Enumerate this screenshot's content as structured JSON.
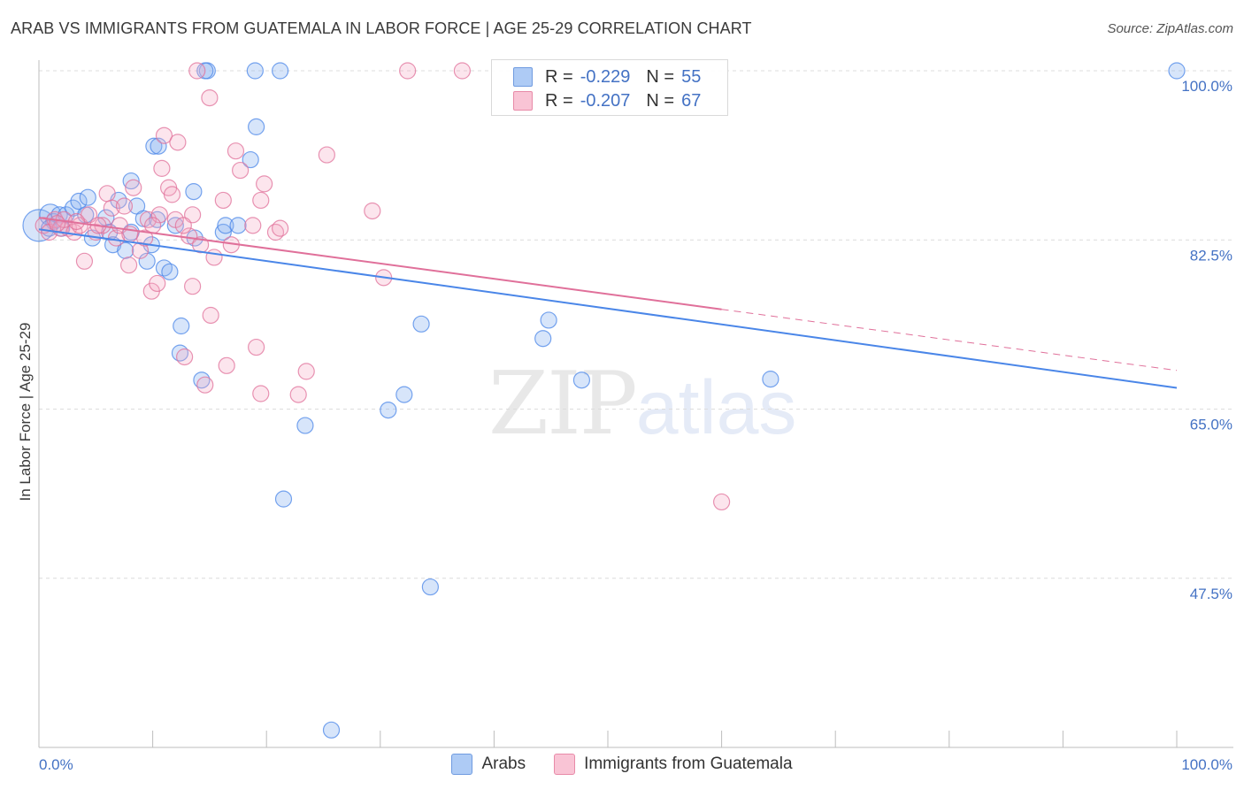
{
  "title": "ARAB VS IMMIGRANTS FROM GUATEMALA IN LABOR FORCE | AGE 25-29 CORRELATION CHART",
  "source": "Source: ZipAtlas.com",
  "watermark": {
    "zip": "ZIP",
    "atlas": "atlas"
  },
  "legend": {
    "r_label": "R =",
    "n_label": "N =",
    "rows": [
      {
        "name": "Arabs",
        "r": "-0.229",
        "n": "55",
        "color": "#aecbf5",
        "border": "#6f9be0"
      },
      {
        "name": "Immigrants from Guatemala",
        "r": "-0.207",
        "n": "67",
        "color": "#f9c4d5",
        "border": "#e88aa8"
      }
    ]
  },
  "chart_data": {
    "type": "scatter",
    "xlabel": "",
    "ylabel": "In Labor Force | Age 25-29",
    "xlim": [
      0,
      100
    ],
    "ylim": [
      30,
      100
    ],
    "x_tick_labels": [
      "0.0%",
      "100.0%"
    ],
    "y_ticks": [
      47.5,
      65.0,
      82.5,
      100.0
    ],
    "y_tick_labels": [
      "47.5%",
      "65.0%",
      "82.5%",
      "100.0%"
    ],
    "grid": true,
    "series": [
      {
        "name": "Arabs",
        "color": "#4a86e8",
        "fill": "rgba(140,180,240,0.35)",
        "trend": {
          "x0": 0,
          "y0": 83.6,
          "x1": 100,
          "y1": 67.2,
          "dash_from": null
        },
        "points": [
          [
            0.0,
            84.0,
            18
          ],
          [
            1.0,
            85.1,
            12
          ],
          [
            1.3,
            84.4,
            9
          ],
          [
            1.8,
            85.1,
            9
          ],
          [
            2.4,
            85.1,
            9
          ],
          [
            3.0,
            85.8,
            9
          ],
          [
            3.5,
            86.5,
            9
          ],
          [
            4.3,
            86.9,
            9
          ],
          [
            4.1,
            85.1,
            9
          ],
          [
            4.7,
            82.7,
            9
          ],
          [
            5.9,
            84.8,
            9
          ],
          [
            6.2,
            83.3,
            9
          ],
          [
            6.5,
            82.0,
            9
          ],
          [
            7.0,
            86.6,
            9
          ],
          [
            7.6,
            81.4,
            9
          ],
          [
            8.1,
            83.3,
            9
          ],
          [
            8.1,
            88.6,
            9
          ],
          [
            8.6,
            86.0,
            9
          ],
          [
            9.2,
            84.7,
            9
          ],
          [
            9.5,
            80.3,
            9
          ],
          [
            9.9,
            82.0,
            9
          ],
          [
            10.1,
            92.2,
            9
          ],
          [
            10.5,
            92.2,
            9
          ],
          [
            10.4,
            84.6,
            9
          ],
          [
            11.0,
            79.6,
            9
          ],
          [
            11.5,
            79.2,
            9
          ],
          [
            12.0,
            84.0,
            9
          ],
          [
            12.5,
            73.6,
            9
          ],
          [
            12.4,
            70.8,
            9
          ],
          [
            13.6,
            87.5,
            9
          ],
          [
            13.7,
            82.7,
            9
          ],
          [
            14.3,
            68.0,
            9
          ],
          [
            14.8,
            100.0,
            9
          ],
          [
            14.6,
            100.0,
            9
          ],
          [
            16.2,
            83.3,
            9
          ],
          [
            16.4,
            84.0,
            9
          ],
          [
            17.5,
            84.0,
            9
          ],
          [
            18.6,
            90.8,
            9
          ],
          [
            19.0,
            100.0,
            9
          ],
          [
            19.1,
            94.2,
            9
          ],
          [
            21.2,
            100.0,
            9
          ],
          [
            21.5,
            55.7,
            9
          ],
          [
            23.4,
            63.3,
            9
          ],
          [
            25.7,
            31.8,
            9
          ],
          [
            30.7,
            64.9,
            9
          ],
          [
            32.1,
            66.5,
            9
          ],
          [
            33.6,
            73.8,
            9
          ],
          [
            34.4,
            46.6,
            9
          ],
          [
            44.3,
            72.3,
            9
          ],
          [
            44.8,
            74.2,
            9
          ],
          [
            47.7,
            68.0,
            9
          ],
          [
            64.3,
            68.1,
            9
          ],
          [
            100.0,
            100.0,
            9
          ],
          [
            2.0,
            83.7,
            9
          ],
          [
            0.9,
            83.7,
            9
          ]
        ]
      },
      {
        "name": "Immigrants from Guatemala",
        "color": "#e0709a",
        "fill": "rgba(245,170,196,0.30)",
        "trend": {
          "x0": 0,
          "y0": 84.8,
          "x1": 100,
          "y1": 69.0,
          "dash_from": 60
        },
        "points": [
          [
            0.4,
            84.0,
            9
          ],
          [
            0.9,
            83.3,
            9
          ],
          [
            1.4,
            84.6,
            9
          ],
          [
            1.9,
            83.7,
            9
          ],
          [
            2.6,
            83.7,
            9
          ],
          [
            3.1,
            83.3,
            9
          ],
          [
            3.6,
            84.0,
            9
          ],
          [
            4.0,
            80.3,
            9
          ],
          [
            4.4,
            85.1,
            9
          ],
          [
            5.0,
            83.3,
            9
          ],
          [
            5.6,
            84.0,
            9
          ],
          [
            6.0,
            87.3,
            9
          ],
          [
            6.4,
            85.8,
            9
          ],
          [
            6.8,
            82.7,
            9
          ],
          [
            7.1,
            84.0,
            9
          ],
          [
            7.5,
            86.0,
            9
          ],
          [
            7.9,
            79.9,
            9
          ],
          [
            8.3,
            87.9,
            9
          ],
          [
            8.9,
            81.4,
            9
          ],
          [
            9.3,
            82.7,
            9
          ],
          [
            9.6,
            84.6,
            9
          ],
          [
            9.9,
            77.2,
            9
          ],
          [
            10.4,
            78.0,
            9
          ],
          [
            10.6,
            85.1,
            9
          ],
          [
            10.8,
            89.9,
            9
          ],
          [
            11.0,
            93.3,
            9
          ],
          [
            11.4,
            87.9,
            9
          ],
          [
            11.7,
            87.2,
            9
          ],
          [
            12.0,
            84.6,
            9
          ],
          [
            12.2,
            92.6,
            9
          ],
          [
            12.8,
            70.4,
            9
          ],
          [
            13.2,
            82.9,
            9
          ],
          [
            13.5,
            77.7,
            9
          ],
          [
            13.9,
            100.0,
            9
          ],
          [
            14.2,
            82.0,
            9
          ],
          [
            14.6,
            67.5,
            9
          ],
          [
            15.0,
            97.2,
            9
          ],
          [
            15.1,
            74.7,
            9
          ],
          [
            15.4,
            80.7,
            9
          ],
          [
            16.2,
            86.6,
            9
          ],
          [
            16.5,
            69.5,
            9
          ],
          [
            16.9,
            82.0,
            9
          ],
          [
            17.3,
            91.7,
            9
          ],
          [
            17.7,
            89.7,
            9
          ],
          [
            18.8,
            84.0,
            9
          ],
          [
            19.1,
            71.4,
            9
          ],
          [
            19.5,
            86.6,
            9
          ],
          [
            19.8,
            88.3,
            9
          ],
          [
            20.8,
            83.3,
            9
          ],
          [
            21.2,
            83.7,
            9
          ],
          [
            22.8,
            66.5,
            9
          ],
          [
            23.5,
            68.9,
            9
          ],
          [
            25.3,
            91.3,
            9
          ],
          [
            29.3,
            85.5,
            9
          ],
          [
            30.3,
            78.6,
            9
          ],
          [
            32.4,
            100.0,
            9
          ],
          [
            37.2,
            100.0,
            9
          ],
          [
            60.0,
            55.4,
            9
          ],
          [
            19.5,
            66.6,
            9
          ],
          [
            2.2,
            84.6,
            9
          ],
          [
            5.2,
            84.0,
            9
          ],
          [
            13.5,
            85.1,
            9
          ],
          [
            8.0,
            83.1,
            9
          ],
          [
            10.0,
            84.0,
            9
          ],
          [
            3.3,
            84.4,
            9
          ],
          [
            12.7,
            84.0,
            9
          ],
          [
            1.6,
            84.2,
            9
          ]
        ]
      }
    ]
  }
}
